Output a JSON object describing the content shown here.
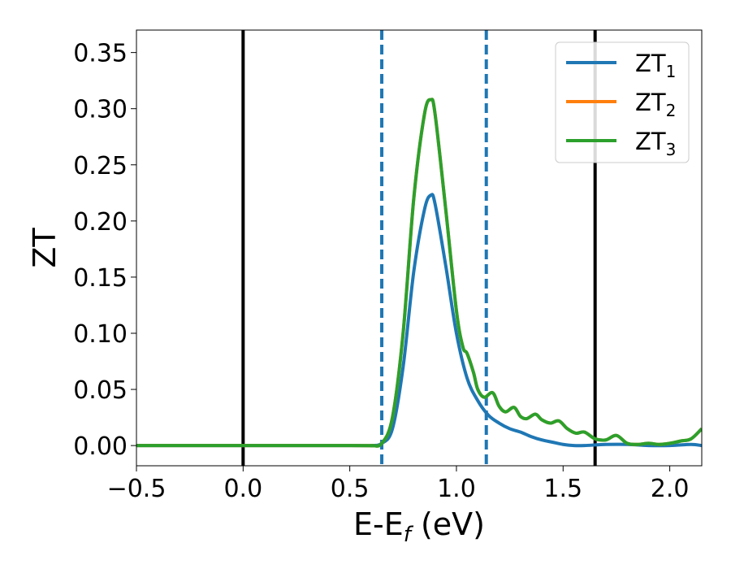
{
  "chart_data": {
    "type": "line",
    "title": "",
    "xlabel": "E-E",
    "xlabel_sub": "f",
    "xlabel_unit": " (eV)",
    "ylabel": "ZT",
    "xlim": [
      -0.5,
      2.15
    ],
    "ylim": [
      -0.018,
      0.37
    ],
    "x_ticks": [
      -0.5,
      0.0,
      0.5,
      1.0,
      1.5,
      2.0
    ],
    "x_tick_labels": [
      "−0.5",
      "0.0",
      "0.5",
      "1.0",
      "1.5",
      "2.0"
    ],
    "y_ticks": [
      0.0,
      0.05,
      0.1,
      0.15,
      0.2,
      0.25,
      0.3,
      0.35
    ],
    "y_tick_labels": [
      "0.00",
      "0.05",
      "0.10",
      "0.15",
      "0.20",
      "0.25",
      "0.30",
      "0.35"
    ],
    "grid": false,
    "legend_position": "top-right",
    "vertical_lines": [
      {
        "x": 0.0,
        "style": "solid",
        "color": "#000000"
      },
      {
        "x": 1.65,
        "style": "solid",
        "color": "#000000"
      },
      {
        "x": 0.65,
        "style": "dashed",
        "color": "#1f77b4"
      },
      {
        "x": 1.14,
        "style": "dashed",
        "color": "#1f77b4"
      }
    ],
    "series": [
      {
        "name": "ZT",
        "name_sub": "1",
        "color": "#1f77b4",
        "x": [
          -0.5,
          0.5,
          0.6,
          0.65,
          0.7,
          0.75,
          0.8,
          0.85,
          0.88,
          0.9,
          0.95,
          1.0,
          1.05,
          1.1,
          1.15,
          1.2,
          1.25,
          1.3,
          1.35,
          1.4,
          1.45,
          1.5,
          1.55,
          1.6,
          1.7,
          1.8,
          1.9,
          2.0,
          2.1,
          2.15
        ],
        "y": [
          0.0,
          0.0,
          0.0,
          0.002,
          0.015,
          0.07,
          0.155,
          0.21,
          0.223,
          0.215,
          0.16,
          0.1,
          0.06,
          0.04,
          0.027,
          0.02,
          0.015,
          0.012,
          0.008,
          0.005,
          0.003,
          0.001,
          0.0,
          0.0,
          0.001,
          0.001,
          0.0,
          0.0,
          0.001,
          0.0
        ]
      },
      {
        "name": "ZT",
        "name_sub": "2",
        "color": "#ff7f0e",
        "x": [
          -0.5,
          0.5,
          0.6,
          0.65,
          0.7,
          0.75,
          0.8,
          0.85,
          0.88,
          0.9,
          0.95,
          1.0,
          1.03,
          1.05,
          1.08,
          1.1,
          1.13,
          1.17,
          1.2,
          1.23,
          1.27,
          1.3,
          1.33,
          1.37,
          1.4,
          1.44,
          1.48,
          1.52,
          1.56,
          1.6,
          1.65,
          1.7,
          1.75,
          1.8,
          1.85,
          1.9,
          1.95,
          2.0,
          2.05,
          2.1,
          2.15
        ],
        "y": [
          0.0,
          0.0,
          0.0,
          0.002,
          0.025,
          0.1,
          0.22,
          0.295,
          0.308,
          0.295,
          0.21,
          0.12,
          0.088,
          0.082,
          0.065,
          0.05,
          0.043,
          0.047,
          0.035,
          0.03,
          0.034,
          0.026,
          0.024,
          0.028,
          0.023,
          0.02,
          0.022,
          0.015,
          0.011,
          0.012,
          0.006,
          0.005,
          0.009,
          0.002,
          0.001,
          0.002,
          0.001,
          0.002,
          0.004,
          0.006,
          0.015
        ]
      },
      {
        "name": "ZT",
        "name_sub": "3",
        "color": "#2ca02c",
        "x": [
          -0.5,
          0.5,
          0.6,
          0.65,
          0.7,
          0.75,
          0.8,
          0.85,
          0.88,
          0.9,
          0.95,
          1.0,
          1.03,
          1.05,
          1.08,
          1.1,
          1.13,
          1.17,
          1.2,
          1.23,
          1.27,
          1.3,
          1.33,
          1.37,
          1.4,
          1.44,
          1.48,
          1.52,
          1.56,
          1.6,
          1.65,
          1.7,
          1.75,
          1.8,
          1.85,
          1.9,
          1.95,
          2.0,
          2.05,
          2.1,
          2.15
        ],
        "y": [
          0.0,
          0.0,
          0.0,
          0.002,
          0.025,
          0.1,
          0.22,
          0.295,
          0.308,
          0.295,
          0.21,
          0.12,
          0.088,
          0.082,
          0.065,
          0.05,
          0.043,
          0.047,
          0.035,
          0.03,
          0.034,
          0.026,
          0.024,
          0.028,
          0.023,
          0.02,
          0.022,
          0.015,
          0.011,
          0.012,
          0.006,
          0.005,
          0.009,
          0.002,
          0.001,
          0.002,
          0.001,
          0.002,
          0.004,
          0.006,
          0.015
        ]
      }
    ]
  }
}
